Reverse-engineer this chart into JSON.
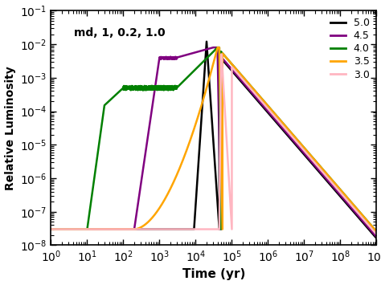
{
  "title": "md, 1, 0.2, 1.0",
  "xlabel": "Time (yr)",
  "ylabel": "Relative Luminosity",
  "xlim_log": [
    0,
    9
  ],
  "ylim_log": [
    -8,
    -1
  ],
  "background_color": "white",
  "legend_labels": [
    "5.0",
    "4.5",
    "4.0",
    "3.5",
    "3.0"
  ],
  "colors": [
    "black",
    "purple",
    "green",
    "orange",
    "#ffb6c1"
  ],
  "decay_slope": -1.25
}
